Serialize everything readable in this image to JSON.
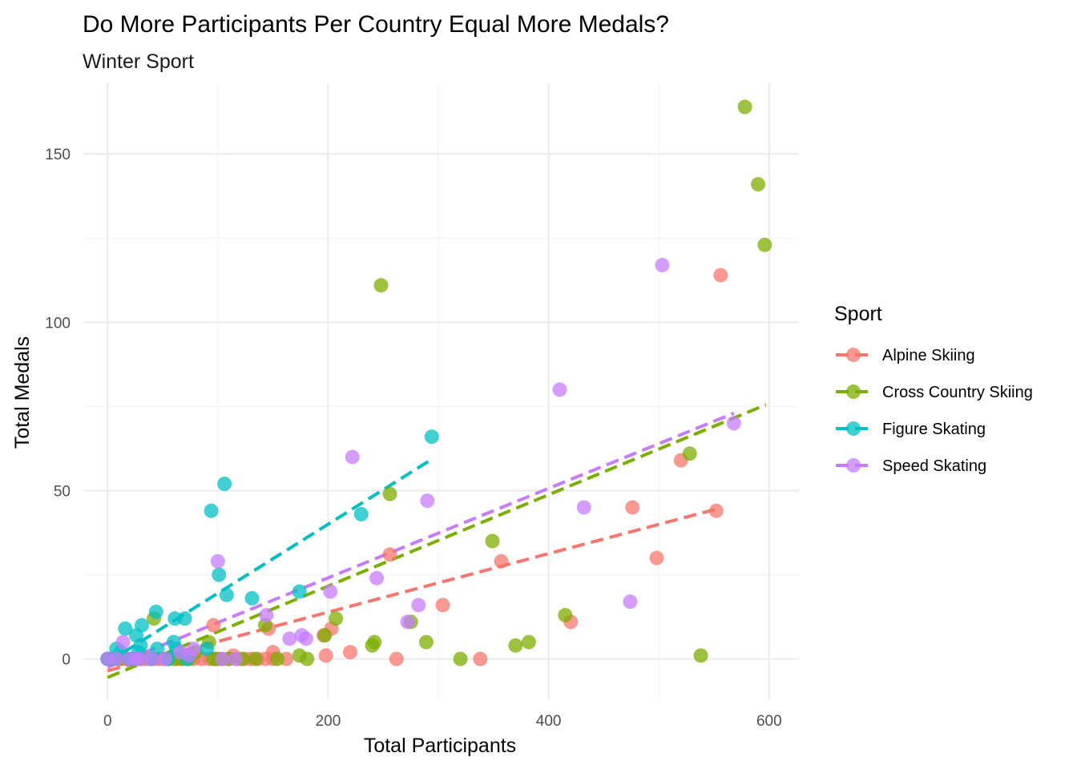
{
  "chart_data": {
    "type": "scatter",
    "title": "Do More Participants Per Country Equal More Medals?",
    "subtitle": "Winter Sport",
    "xlabel": "Total Participants",
    "ylabel": "Total Medals",
    "xlim": [
      -22,
      627
    ],
    "ylim": [
      -12,
      171
    ],
    "xticks": [
      0,
      200,
      400,
      600
    ],
    "yticks": [
      0,
      50,
      100,
      150
    ],
    "grid": true,
    "legend": {
      "title": "Sport",
      "placement": "right"
    },
    "series": [
      {
        "name": "Alpine Skiing",
        "color": "#F8766D",
        "trend": [
          [
            0,
            -3.5
          ],
          [
            552,
            44.5
          ]
        ],
        "points": [
          [
            0,
            0
          ],
          [
            3,
            0
          ],
          [
            5,
            0
          ],
          [
            8,
            0
          ],
          [
            11,
            0
          ],
          [
            14,
            0
          ],
          [
            17,
            0
          ],
          [
            20,
            0
          ],
          [
            23,
            0
          ],
          [
            26,
            0
          ],
          [
            30,
            0
          ],
          [
            34,
            0
          ],
          [
            38,
            0
          ],
          [
            42,
            0
          ],
          [
            46,
            0
          ],
          [
            50,
            0
          ],
          [
            55,
            0
          ],
          [
            60,
            0
          ],
          [
            66,
            0
          ],
          [
            72,
            0
          ],
          [
            78,
            0
          ],
          [
            85,
            0
          ],
          [
            92,
            0
          ],
          [
            98,
            0
          ],
          [
            104,
            0
          ],
          [
            110,
            0
          ],
          [
            114,
            1
          ],
          [
            118,
            0
          ],
          [
            124,
            0
          ],
          [
            130,
            0
          ],
          [
            136,
            0
          ],
          [
            143,
            0
          ],
          [
            150,
            0
          ],
          [
            162,
            0
          ],
          [
            96,
            10
          ],
          [
            146,
            9
          ],
          [
            150,
            2
          ],
          [
            196,
            7
          ],
          [
            198,
            1
          ],
          [
            203,
            9
          ],
          [
            220,
            2
          ],
          [
            256,
            31
          ],
          [
            262,
            0
          ],
          [
            304,
            16
          ],
          [
            338,
            0
          ],
          [
            357,
            29
          ],
          [
            420,
            11
          ],
          [
            476,
            45
          ],
          [
            498,
            30
          ],
          [
            520,
            59
          ],
          [
            552,
            44
          ],
          [
            556,
            114
          ]
        ]
      },
      {
        "name": "Cross Country Skiing",
        "color": "#7CAE00",
        "trend": [
          [
            0,
            -5.5
          ],
          [
            597,
            75.5
          ]
        ],
        "points": [
          [
            0,
            0
          ],
          [
            10,
            0
          ],
          [
            20,
            0
          ],
          [
            30,
            0
          ],
          [
            42,
            12
          ],
          [
            55,
            0
          ],
          [
            62,
            0
          ],
          [
            68,
            0
          ],
          [
            74,
            0
          ],
          [
            80,
            2
          ],
          [
            92,
            5
          ],
          [
            96,
            0
          ],
          [
            100,
            0
          ],
          [
            110,
            0
          ],
          [
            122,
            0
          ],
          [
            134,
            0
          ],
          [
            143,
            10
          ],
          [
            154,
            0
          ],
          [
            174,
            1
          ],
          [
            181,
            0
          ],
          [
            197,
            7
          ],
          [
            207,
            12
          ],
          [
            240,
            4
          ],
          [
            242,
            5
          ],
          [
            248,
            111
          ],
          [
            256,
            49
          ],
          [
            275,
            11
          ],
          [
            289,
            5
          ],
          [
            320,
            0
          ],
          [
            349,
            35
          ],
          [
            370,
            4
          ],
          [
            382,
            5
          ],
          [
            415,
            13
          ],
          [
            538,
            1
          ],
          [
            528,
            61
          ],
          [
            578,
            164
          ],
          [
            590,
            141
          ],
          [
            596,
            123
          ]
        ]
      },
      {
        "name": "Figure Skating",
        "color": "#00BFC4",
        "trend": [
          [
            0,
            -1
          ],
          [
            295,
            59.5
          ]
        ],
        "points": [
          [
            0,
            0
          ],
          [
            5,
            0
          ],
          [
            8,
            3
          ],
          [
            12,
            2
          ],
          [
            16,
            9
          ],
          [
            20,
            0
          ],
          [
            24,
            0
          ],
          [
            26,
            7
          ],
          [
            28,
            2
          ],
          [
            30,
            4
          ],
          [
            31,
            10
          ],
          [
            40,
            0
          ],
          [
            44,
            14
          ],
          [
            45,
            3
          ],
          [
            55,
            0
          ],
          [
            60,
            5
          ],
          [
            61,
            12
          ],
          [
            62,
            3
          ],
          [
            70,
            12
          ],
          [
            72,
            0
          ],
          [
            90,
            3
          ],
          [
            94,
            44
          ],
          [
            101,
            25
          ],
          [
            106,
            52
          ],
          [
            108,
            19
          ],
          [
            131,
            18
          ],
          [
            174,
            20
          ],
          [
            230,
            43
          ],
          [
            294,
            66
          ]
        ]
      },
      {
        "name": "Speed Skating",
        "color": "#C77CFF",
        "trend": [
          [
            0,
            -2.5
          ],
          [
            568,
            73
          ]
        ],
        "points": [
          [
            0,
            0
          ],
          [
            8,
            0
          ],
          [
            14,
            5
          ],
          [
            20,
            0
          ],
          [
            26,
            0
          ],
          [
            30,
            0
          ],
          [
            40,
            0
          ],
          [
            52,
            0
          ],
          [
            66,
            2
          ],
          [
            74,
            1
          ],
          [
            78,
            3
          ],
          [
            100,
            29
          ],
          [
            104,
            0
          ],
          [
            116,
            0
          ],
          [
            144,
            13
          ],
          [
            165,
            6
          ],
          [
            176,
            7
          ],
          [
            180,
            6
          ],
          [
            202,
            20
          ],
          [
            222,
            60
          ],
          [
            244,
            24
          ],
          [
            272,
            11
          ],
          [
            282,
            16
          ],
          [
            290,
            47
          ],
          [
            410,
            80
          ],
          [
            432,
            45
          ],
          [
            474,
            17
          ],
          [
            503,
            117
          ],
          [
            568,
            70
          ]
        ]
      }
    ]
  }
}
